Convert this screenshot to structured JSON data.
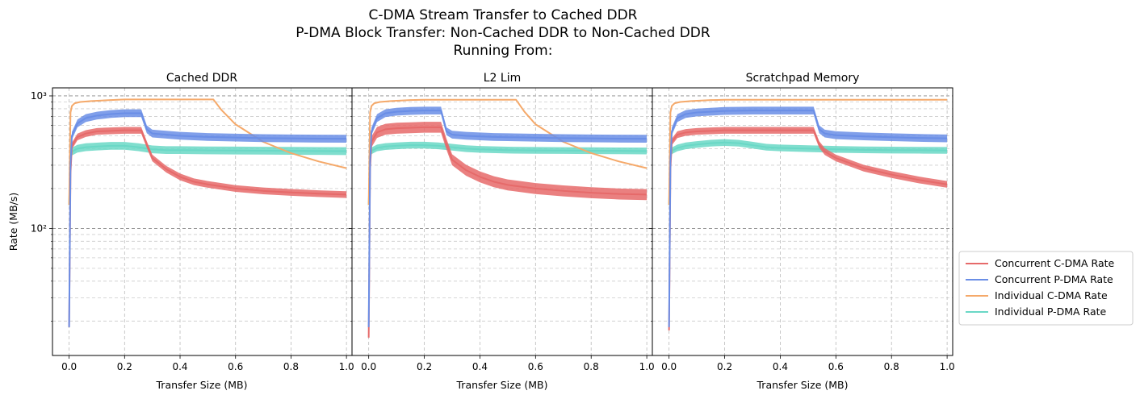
{
  "figure": {
    "title_lines": [
      "C-DMA Stream Transfer to Cached DDR",
      "P-DMA Block Transfer: Non-Cached DDR to Non-Cached DDR",
      "Running From:"
    ]
  },
  "chart_data": [
    {
      "type": "line",
      "title": "Cached DDR",
      "xlabel": "Transfer Size (MB)",
      "ylabel": "Rate (MB/s)",
      "yscale": "log",
      "xlim": [
        -0.06,
        1.02
      ],
      "ylim": [
        11,
        1150
      ],
      "xticks": [
        0.0,
        0.2,
        0.4,
        0.6,
        0.8,
        1.0
      ],
      "xtick_labels": [
        "0.0",
        "0.2",
        "0.4",
        "0.6",
        "0.8",
        "1.0"
      ],
      "ytick_labels": [
        "10²",
        "10³"
      ],
      "grid": true,
      "series": [
        {
          "name": "Concurrent C-DMA Rate",
          "x": [
            0.0,
            0.005,
            0.01,
            0.03,
            0.06,
            0.1,
            0.15,
            0.2,
            0.26,
            0.28,
            0.3,
            0.35,
            0.4,
            0.45,
            0.5,
            0.6,
            0.7,
            0.8,
            0.9,
            1.0
          ],
          "y": [
            18,
            260,
            420,
            490,
            520,
            540,
            545,
            550,
            550,
            430,
            340,
            280,
            245,
            225,
            215,
            200,
            192,
            187,
            183,
            180
          ],
          "band": 0.06
        },
        {
          "name": "Concurrent P-DMA Rate",
          "x": [
            0.0,
            0.005,
            0.01,
            0.03,
            0.06,
            0.1,
            0.15,
            0.2,
            0.26,
            0.28,
            0.3,
            0.35,
            0.4,
            0.45,
            0.5,
            0.6,
            0.7,
            0.8,
            0.9,
            1.0
          ],
          "y": [
            18,
            300,
            500,
            620,
            680,
            710,
            730,
            740,
            740,
            560,
            520,
            510,
            500,
            495,
            490,
            485,
            480,
            478,
            476,
            475
          ],
          "band": 0.07
        },
        {
          "name": "Individual C-DMA Rate",
          "x": [
            0.0,
            0.005,
            0.01,
            0.02,
            0.04,
            0.08,
            0.15,
            0.2,
            0.3,
            0.4,
            0.5,
            0.52,
            0.55,
            0.6,
            0.7,
            0.8,
            0.9,
            1.0
          ],
          "y": [
            150,
            750,
            840,
            880,
            900,
            915,
            930,
            940,
            940,
            940,
            940,
            940,
            780,
            610,
            450,
            370,
            320,
            285
          ],
          "band": 0.0
        },
        {
          "name": "Individual P-DMA Rate",
          "x": [
            0.0,
            0.005,
            0.01,
            0.03,
            0.06,
            0.1,
            0.15,
            0.2,
            0.25,
            0.3,
            0.35,
            0.4,
            0.5,
            0.6,
            0.7,
            0.8,
            0.9,
            1.0
          ],
          "y": [
            150,
            330,
            380,
            400,
            410,
            415,
            420,
            420,
            410,
            395,
            390,
            390,
            388,
            387,
            386,
            385,
            384,
            383
          ],
          "band": 0.07
        }
      ]
    },
    {
      "type": "line",
      "title": "L2 Lim",
      "xlabel": "Transfer Size (MB)",
      "ylabel": "",
      "yscale": "log",
      "xlim": [
        -0.06,
        1.02
      ],
      "ylim": [
        11,
        1150
      ],
      "xticks": [
        0.0,
        0.2,
        0.4,
        0.6,
        0.8,
        1.0
      ],
      "xtick_labels": [
        "0.0",
        "0.2",
        "0.4",
        "0.6",
        "0.8",
        "1.0"
      ],
      "grid": true,
      "series": [
        {
          "name": "Concurrent C-DMA Rate",
          "x": [
            0.0,
            0.005,
            0.01,
            0.03,
            0.06,
            0.1,
            0.15,
            0.2,
            0.26,
            0.28,
            0.3,
            0.35,
            0.4,
            0.45,
            0.5,
            0.6,
            0.7,
            0.8,
            0.9,
            1.0
          ],
          "y": [
            15,
            280,
            450,
            530,
            560,
            570,
            575,
            580,
            580,
            430,
            330,
            275,
            245,
            225,
            213,
            200,
            192,
            186,
            182,
            180
          ],
          "band": 0.1
        },
        {
          "name": "Concurrent P-DMA Rate",
          "x": [
            0.0,
            0.005,
            0.01,
            0.03,
            0.06,
            0.1,
            0.15,
            0.2,
            0.26,
            0.28,
            0.3,
            0.35,
            0.4,
            0.45,
            0.5,
            0.6,
            0.7,
            0.8,
            0.9,
            1.0
          ],
          "y": [
            18,
            320,
            540,
            680,
            740,
            760,
            770,
            775,
            775,
            540,
            510,
            500,
            495,
            490,
            488,
            484,
            480,
            478,
            476,
            475
          ],
          "band": 0.07
        },
        {
          "name": "Individual C-DMA Rate",
          "x": [
            0.0,
            0.005,
            0.01,
            0.02,
            0.04,
            0.08,
            0.15,
            0.2,
            0.3,
            0.4,
            0.5,
            0.53,
            0.56,
            0.6,
            0.7,
            0.8,
            0.9,
            1.0
          ],
          "y": [
            150,
            750,
            840,
            880,
            900,
            915,
            930,
            935,
            935,
            935,
            935,
            935,
            760,
            610,
            450,
            370,
            320,
            285
          ],
          "band": 0.0
        },
        {
          "name": "Individual P-DMA Rate",
          "x": [
            0.0,
            0.005,
            0.01,
            0.03,
            0.06,
            0.1,
            0.15,
            0.2,
            0.25,
            0.3,
            0.35,
            0.4,
            0.5,
            0.6,
            0.7,
            0.8,
            0.9,
            1.0
          ],
          "y": [
            150,
            340,
            385,
            405,
            415,
            420,
            425,
            425,
            420,
            410,
            400,
            395,
            390,
            388,
            387,
            386,
            385,
            384
          ],
          "band": 0.06
        }
      ]
    },
    {
      "type": "line",
      "title": "Scratchpad Memory",
      "xlabel": "Transfer Size (MB)",
      "ylabel": "",
      "yscale": "log",
      "xlim": [
        -0.06,
        1.02
      ],
      "ylim": [
        11,
        1150
      ],
      "xticks": [
        0.0,
        0.2,
        0.4,
        0.6,
        0.8,
        1.0
      ],
      "xtick_labels": [
        "0.0",
        "0.2",
        "0.4",
        "0.6",
        "0.8",
        "1.0"
      ],
      "grid": true,
      "series": [
        {
          "name": "Concurrent C-DMA Rate",
          "x": [
            0.0,
            0.005,
            0.01,
            0.03,
            0.06,
            0.1,
            0.15,
            0.2,
            0.3,
            0.4,
            0.52,
            0.54,
            0.56,
            0.6,
            0.7,
            0.8,
            0.9,
            1.0
          ],
          "y": [
            17,
            280,
            450,
            510,
            530,
            540,
            545,
            550,
            550,
            550,
            550,
            430,
            380,
            340,
            285,
            255,
            232,
            215
          ],
          "band": 0.06
        },
        {
          "name": "Concurrent P-DMA Rate",
          "x": [
            0.0,
            0.005,
            0.01,
            0.03,
            0.06,
            0.1,
            0.15,
            0.2,
            0.3,
            0.4,
            0.52,
            0.54,
            0.56,
            0.6,
            0.7,
            0.8,
            0.9,
            1.0
          ],
          "y": [
            18,
            320,
            540,
            680,
            730,
            750,
            760,
            770,
            775,
            775,
            775,
            560,
            520,
            505,
            495,
            488,
            482,
            478
          ],
          "band": 0.07
        },
        {
          "name": "Individual C-DMA Rate",
          "x": [
            0.0,
            0.005,
            0.01,
            0.02,
            0.04,
            0.08,
            0.15,
            0.2,
            0.3,
            0.4,
            0.5,
            0.6,
            0.7,
            0.8,
            0.9,
            1.0
          ],
          "y": [
            150,
            750,
            840,
            880,
            900,
            915,
            930,
            935,
            935,
            935,
            935,
            935,
            935,
            935,
            935,
            935
          ],
          "band": 0.0
        },
        {
          "name": "Individual P-DMA Rate",
          "x": [
            0.0,
            0.005,
            0.01,
            0.03,
            0.06,
            0.1,
            0.15,
            0.2,
            0.25,
            0.3,
            0.35,
            0.4,
            0.5,
            0.6,
            0.7,
            0.8,
            0.9,
            1.0
          ],
          "y": [
            150,
            340,
            385,
            405,
            420,
            430,
            440,
            445,
            440,
            425,
            410,
            405,
            400,
            395,
            392,
            390,
            389,
            388
          ],
          "band": 0.06
        }
      ]
    }
  ],
  "legend": {
    "placement": "right",
    "items": [
      {
        "label": "Concurrent C-DMA Rate",
        "color": "#e66a6a"
      },
      {
        "label": "Concurrent P-DMA Rate",
        "color": "#6a8ee6"
      },
      {
        "label": "Individual C-DMA Rate",
        "color": "#f5a96a"
      },
      {
        "label": "Individual P-DMA Rate",
        "color": "#6ad8c6"
      }
    ]
  },
  "colors": {
    "concurrent_cdma": "#e66a6a",
    "concurrent_pdma": "#6a8ee6",
    "individual_cdma": "#f5a96a",
    "individual_pdma": "#6ad8c6"
  }
}
